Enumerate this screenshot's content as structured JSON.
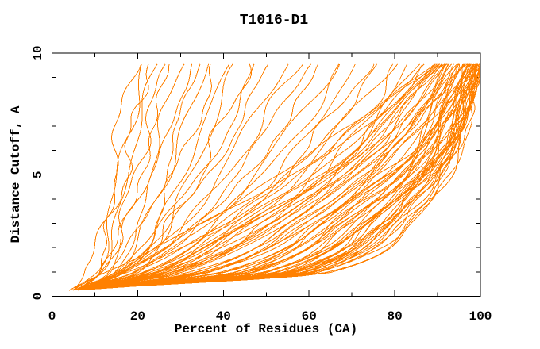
{
  "window": {
    "background": "#ffffff"
  },
  "chart_data": {
    "type": "line",
    "title": "T1016-D1",
    "xlabel": "Percent of Residues (CA)",
    "ylabel": "Distance Cutoff, A",
    "xlim": [
      0,
      100
    ],
    "ylim": [
      0,
      10
    ],
    "x_major_ticks": [
      0,
      20,
      40,
      60,
      80,
      100
    ],
    "x_minor_ticks": [
      10,
      30,
      50,
      70,
      90
    ],
    "y_major_ticks": [
      0,
      5,
      10
    ],
    "y_minor_ticks": [
      1,
      2,
      3,
      4,
      6,
      7,
      8,
      9
    ],
    "grid": false,
    "legend": "none",
    "line_color": "#ff8000",
    "axis_color": "#000000",
    "anchor_y": [
      0.25,
      1,
      3,
      6,
      9.55
    ],
    "curves": [
      [
        5,
        9,
        12,
        15,
        19
      ],
      [
        5,
        10,
        13,
        17,
        21
      ],
      [
        6,
        10,
        14,
        18,
        22
      ],
      [
        5,
        11,
        15,
        19,
        24
      ],
      [
        6,
        12,
        16,
        21,
        26
      ],
      [
        6,
        12,
        17,
        22,
        28
      ],
      [
        7,
        13,
        18,
        24,
        30
      ],
      [
        6,
        14,
        20,
        26,
        32
      ],
      [
        7,
        14,
        21,
        28,
        34
      ],
      [
        6,
        15,
        22,
        29,
        36
      ],
      [
        7,
        16,
        24,
        31,
        38
      ],
      [
        6,
        17,
        25,
        33,
        41
      ],
      [
        7,
        18,
        27,
        35,
        43
      ],
      [
        6,
        19,
        28,
        37,
        46
      ],
      [
        6,
        14,
        26,
        38,
        48
      ],
      [
        7,
        15,
        28,
        40,
        51
      ],
      [
        5,
        16,
        30,
        43,
        54
      ],
      [
        6,
        17,
        31,
        45,
        57
      ],
      [
        7,
        18,
        33,
        47,
        60
      ],
      [
        5,
        19,
        35,
        50,
        63
      ],
      [
        6,
        20,
        36,
        52,
        66
      ],
      [
        7,
        21,
        38,
        54,
        68
      ],
      [
        5,
        22,
        40,
        57,
        71
      ],
      [
        6,
        23,
        42,
        59,
        74
      ],
      [
        7,
        24,
        43,
        61,
        76
      ],
      [
        5,
        25,
        45,
        63,
        79
      ],
      [
        6,
        26,
        47,
        66,
        81
      ],
      [
        7,
        27,
        48,
        68,
        83
      ],
      [
        5,
        28,
        50,
        70,
        85
      ],
      [
        6,
        29,
        52,
        72,
        86
      ],
      [
        4,
        13,
        34,
        62,
        88
      ],
      [
        5,
        20,
        40,
        66,
        88
      ],
      [
        4,
        28,
        50,
        70,
        89
      ],
      [
        5,
        16,
        36,
        64,
        89
      ],
      [
        6,
        24,
        46,
        72,
        90
      ],
      [
        4,
        33,
        55,
        75,
        90
      ],
      [
        5,
        18,
        42,
        68,
        90
      ],
      [
        6,
        27,
        48,
        74,
        91
      ],
      [
        4,
        36,
        58,
        78,
        91
      ],
      [
        5,
        21,
        44,
        70,
        91
      ],
      [
        6,
        30,
        52,
        76,
        92
      ],
      [
        4,
        40,
        62,
        80,
        92
      ],
      [
        5,
        24,
        46,
        72,
        92
      ],
      [
        6,
        33,
        56,
        78,
        93
      ],
      [
        4,
        43,
        64,
        82,
        93
      ],
      [
        5,
        26,
        50,
        74,
        93
      ],
      [
        6,
        36,
        58,
        80,
        94
      ],
      [
        4,
        46,
        66,
        84,
        94
      ],
      [
        5,
        29,
        52,
        76,
        94
      ],
      [
        6,
        38,
        60,
        82,
        95
      ],
      [
        4,
        48,
        68,
        85,
        95
      ],
      [
        5,
        31,
        54,
        78,
        95
      ],
      [
        6,
        41,
        62,
        84,
        95
      ],
      [
        4,
        50,
        70,
        86,
        96
      ],
      [
        5,
        34,
        56,
        80,
        96
      ],
      [
        6,
        44,
        64,
        85,
        96
      ],
      [
        4,
        52,
        72,
        88,
        96
      ],
      [
        5,
        36,
        58,
        82,
        97
      ],
      [
        6,
        46,
        66,
        86,
        97
      ],
      [
        4,
        54,
        74,
        89,
        97
      ],
      [
        5,
        38,
        60,
        84,
        97
      ],
      [
        6,
        48,
        68,
        87,
        97
      ],
      [
        4,
        56,
        76,
        90,
        98
      ],
      [
        5,
        41,
        62,
        85,
        98
      ],
      [
        6,
        50,
        70,
        88,
        98
      ],
      [
        4,
        57,
        77,
        91,
        98
      ],
      [
        5,
        43,
        64,
        86,
        98
      ],
      [
        6,
        52,
        72,
        89,
        98
      ],
      [
        4,
        58,
        78,
        92,
        99
      ],
      [
        5,
        45,
        66,
        87,
        99
      ],
      [
        6,
        53,
        74,
        90,
        99
      ],
      [
        4,
        59,
        79,
        92,
        99
      ],
      [
        5,
        47,
        68,
        88,
        99
      ],
      [
        6,
        55,
        75,
        91,
        99
      ],
      [
        4,
        60,
        80,
        93,
        99
      ],
      [
        5,
        49,
        70,
        89,
        100
      ],
      [
        6,
        56,
        76,
        92,
        100
      ],
      [
        4,
        61,
        81,
        93,
        100
      ],
      [
        5,
        51,
        72,
        90,
        100
      ],
      [
        6,
        57,
        77,
        92,
        100
      ],
      [
        4,
        62,
        82,
        94,
        100
      ],
      [
        5,
        53,
        73,
        91,
        100
      ],
      [
        6,
        58,
        78,
        93,
        100
      ],
      [
        4,
        63,
        83,
        94,
        100
      ],
      [
        5,
        55,
        74,
        91,
        100
      ],
      [
        6,
        59,
        79,
        93,
        100
      ],
      [
        4,
        64,
        84,
        95,
        100
      ],
      [
        5,
        56,
        75,
        92,
        100
      ],
      [
        6,
        60,
        80,
        93,
        100
      ],
      [
        4,
        65,
        85,
        95,
        100
      ],
      [
        5,
        57,
        76,
        92,
        100
      ],
      [
        6,
        61,
        81,
        94,
        100
      ]
    ]
  }
}
